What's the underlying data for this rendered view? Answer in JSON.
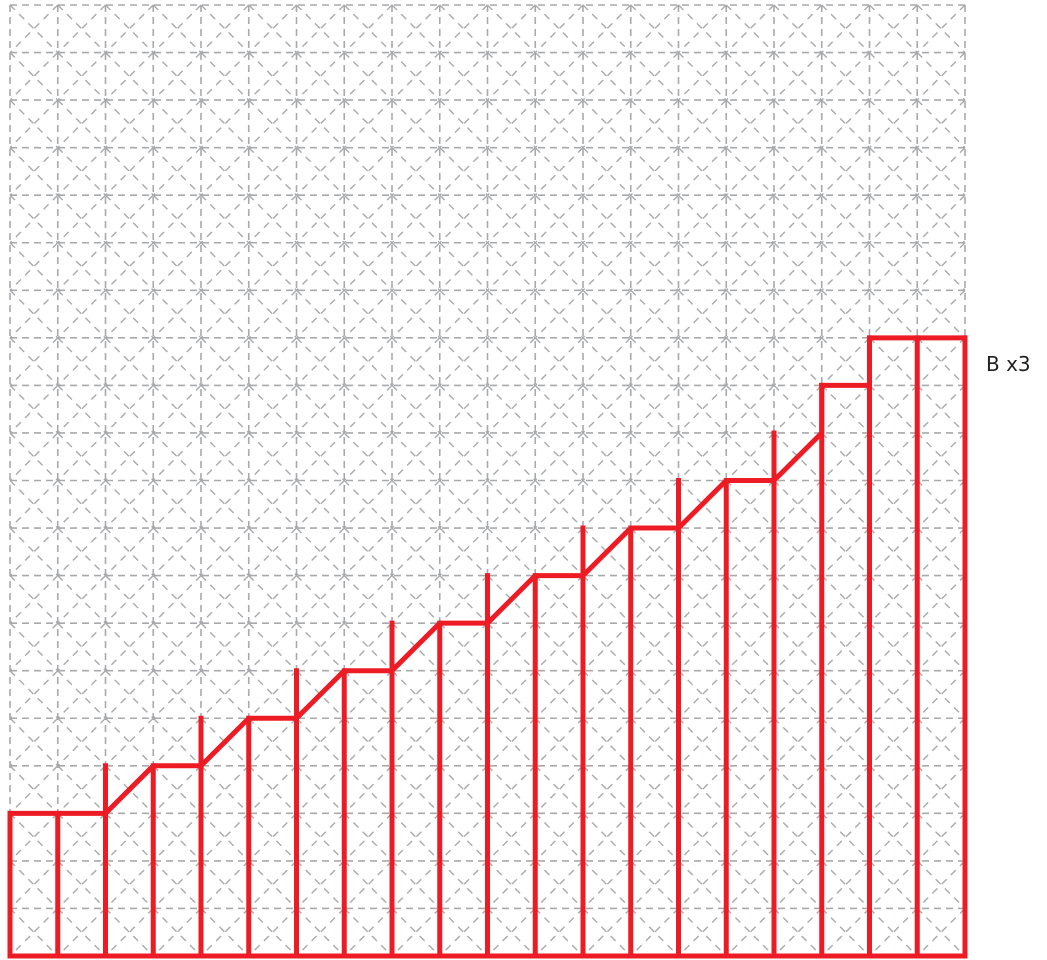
{
  "label": "B x3",
  "colors": {
    "background": "#ffffff",
    "grid": "#a7a9ac",
    "outline": "#ed1c24",
    "label_text": "#231f20"
  },
  "grid": {
    "style": "dashed",
    "diagonals": true,
    "cells_across": 20,
    "cells_down": 20
  },
  "strips": {
    "count": 20,
    "heights_in_grid_units": [
      3,
      3,
      4,
      4,
      5,
      5,
      6,
      6,
      7,
      7,
      8,
      8,
      9,
      9,
      10,
      10,
      11,
      12,
      13,
      13
    ]
  }
}
